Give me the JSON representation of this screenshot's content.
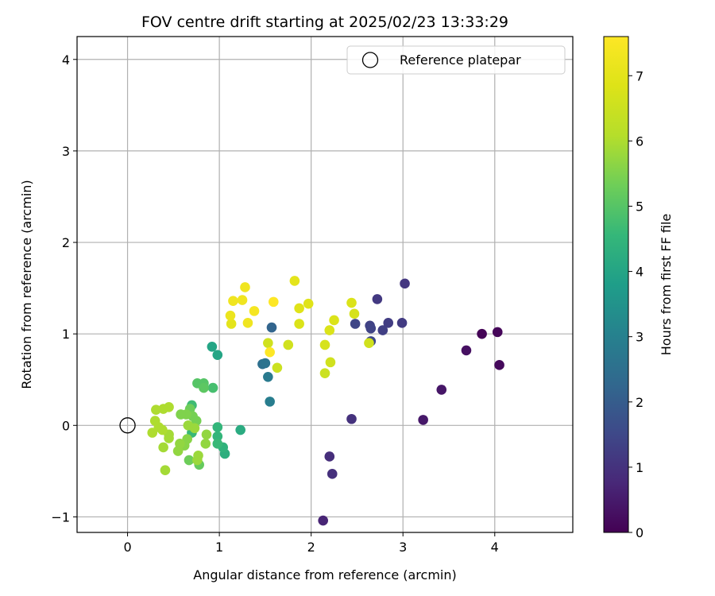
{
  "chart_data": {
    "type": "scatter",
    "title": "FOV centre drift starting at 2025/02/23 13:33:29",
    "xlabel": "Angular distance from reference (arcmin)",
    "ylabel": "Rotation from reference (arcmin)",
    "xlim": [
      -0.55,
      4.85
    ],
    "ylim": [
      -1.17,
      4.25
    ],
    "xticks": [
      0,
      1,
      2,
      3,
      4
    ],
    "yticks": [
      -1,
      0,
      1,
      2,
      3,
      4
    ],
    "grid": true,
    "legend": {
      "label": "Reference platepar",
      "position": "top-right"
    },
    "reference_point": {
      "x": 0,
      "y": 0
    },
    "colorbar": {
      "label": "Hours from first FF file",
      "min": 0,
      "max": 7.6,
      "ticks": [
        0,
        1,
        2,
        3,
        4,
        5,
        6,
        7
      ],
      "colormap": "viridis"
    },
    "points": [
      {
        "x": 3.86,
        "y": 1.0,
        "c": 0.05
      },
      {
        "x": 4.03,
        "y": 1.02,
        "c": 0.1
      },
      {
        "x": 4.05,
        "y": 0.66,
        "c": 0.15
      },
      {
        "x": 3.69,
        "y": 0.82,
        "c": 0.3
      },
      {
        "x": 3.42,
        "y": 0.39,
        "c": 0.4
      },
      {
        "x": 3.22,
        "y": 0.06,
        "c": 0.45
      },
      {
        "x": 2.13,
        "y": -1.04,
        "c": 0.7
      },
      {
        "x": 2.2,
        "y": -0.34,
        "c": 0.9
      },
      {
        "x": 2.23,
        "y": -0.53,
        "c": 0.95
      },
      {
        "x": 2.44,
        "y": 0.07,
        "c": 1.0
      },
      {
        "x": 3.02,
        "y": 1.55,
        "c": 1.1
      },
      {
        "x": 2.72,
        "y": 1.38,
        "c": 1.15
      },
      {
        "x": 2.99,
        "y": 1.12,
        "c": 1.2
      },
      {
        "x": 2.84,
        "y": 1.12,
        "c": 1.25
      },
      {
        "x": 2.78,
        "y": 1.04,
        "c": 1.3
      },
      {
        "x": 2.64,
        "y": 1.09,
        "c": 1.35
      },
      {
        "x": 2.65,
        "y": 1.06,
        "c": 1.4
      },
      {
        "x": 2.48,
        "y": 1.11,
        "c": 1.45
      },
      {
        "x": 2.65,
        "y": 0.92,
        "c": 1.5
      },
      {
        "x": 1.57,
        "y": 1.07,
        "c": 2.2
      },
      {
        "x": 1.47,
        "y": 0.67,
        "c": 2.5
      },
      {
        "x": 1.5,
        "y": 0.68,
        "c": 2.6
      },
      {
        "x": 1.53,
        "y": 0.53,
        "c": 2.8
      },
      {
        "x": 1.55,
        "y": 0.26,
        "c": 2.9
      },
      {
        "x": 0.92,
        "y": 0.86,
        "c": 4.0
      },
      {
        "x": 0.98,
        "y": 0.77,
        "c": 4.0
      },
      {
        "x": 1.23,
        "y": -0.05,
        "c": 4.2
      },
      {
        "x": 1.06,
        "y": -0.31,
        "c": 4.3
      },
      {
        "x": 1.04,
        "y": -0.24,
        "c": 4.4
      },
      {
        "x": 0.98,
        "y": -0.02,
        "c": 4.5
      },
      {
        "x": 0.98,
        "y": -0.12,
        "c": 4.5
      },
      {
        "x": 0.98,
        "y": -0.2,
        "c": 4.6
      },
      {
        "x": 0.7,
        "y": -0.08,
        "c": 4.6
      },
      {
        "x": 0.7,
        "y": 0.22,
        "c": 4.7
      },
      {
        "x": 0.93,
        "y": 0.41,
        "c": 4.8
      },
      {
        "x": 0.76,
        "y": 0.46,
        "c": 5.0
      },
      {
        "x": 0.83,
        "y": 0.46,
        "c": 5.0
      },
      {
        "x": 0.83,
        "y": 0.41,
        "c": 5.1
      },
      {
        "x": 0.78,
        "y": -0.43,
        "c": 5.2
      },
      {
        "x": 0.67,
        "y": -0.38,
        "c": 5.3
      },
      {
        "x": 0.68,
        "y": 0.18,
        "c": 5.3
      },
      {
        "x": 0.71,
        "y": 0.1,
        "c": 5.4
      },
      {
        "x": 0.75,
        "y": 0.05,
        "c": 5.4
      },
      {
        "x": 0.64,
        "y": 0.12,
        "c": 5.5
      },
      {
        "x": 0.58,
        "y": 0.12,
        "c": 5.5
      },
      {
        "x": 0.65,
        "y": -0.15,
        "c": 5.6
      },
      {
        "x": 0.62,
        "y": -0.22,
        "c": 5.6
      },
      {
        "x": 0.57,
        "y": -0.2,
        "c": 5.7
      },
      {
        "x": 0.55,
        "y": -0.28,
        "c": 5.7
      },
      {
        "x": 0.86,
        "y": -0.1,
        "c": 5.7
      },
      {
        "x": 0.85,
        "y": -0.2,
        "c": 5.7
      },
      {
        "x": 0.73,
        "y": -0.03,
        "c": 5.8
      },
      {
        "x": 0.66,
        "y": 0.0,
        "c": 5.8
      },
      {
        "x": 0.76,
        "y": -0.38,
        "c": 5.8
      },
      {
        "x": 0.77,
        "y": -0.33,
        "c": 5.8
      },
      {
        "x": 0.45,
        "y": -0.1,
        "c": 5.9
      },
      {
        "x": 0.45,
        "y": -0.14,
        "c": 5.9
      },
      {
        "x": 0.39,
        "y": -0.24,
        "c": 5.9
      },
      {
        "x": 0.41,
        "y": -0.49,
        "c": 5.9
      },
      {
        "x": 0.34,
        "y": -0.02,
        "c": 6.0
      },
      {
        "x": 0.38,
        "y": -0.05,
        "c": 6.0
      },
      {
        "x": 0.3,
        "y": 0.05,
        "c": 6.0
      },
      {
        "x": 0.27,
        "y": -0.08,
        "c": 6.0
      },
      {
        "x": 0.31,
        "y": 0.17,
        "c": 6.0
      },
      {
        "x": 0.39,
        "y": 0.18,
        "c": 6.0
      },
      {
        "x": 0.45,
        "y": 0.2,
        "c": 6.0
      },
      {
        "x": 1.63,
        "y": 0.63,
        "c": 6.5
      },
      {
        "x": 1.75,
        "y": 0.88,
        "c": 6.6
      },
      {
        "x": 1.53,
        "y": 0.9,
        "c": 6.6
      },
      {
        "x": 2.15,
        "y": 0.57,
        "c": 6.5
      },
      {
        "x": 2.21,
        "y": 0.69,
        "c": 6.6
      },
      {
        "x": 2.15,
        "y": 0.88,
        "c": 6.7
      },
      {
        "x": 2.2,
        "y": 1.04,
        "c": 6.8
      },
      {
        "x": 2.25,
        "y": 1.15,
        "c": 6.8
      },
      {
        "x": 2.44,
        "y": 1.34,
        "c": 6.8
      },
      {
        "x": 2.47,
        "y": 1.22,
        "c": 6.7
      },
      {
        "x": 2.63,
        "y": 0.9,
        "c": 6.6
      },
      {
        "x": 1.87,
        "y": 1.11,
        "c": 6.8
      },
      {
        "x": 1.87,
        "y": 1.28,
        "c": 6.9
      },
      {
        "x": 1.97,
        "y": 1.33,
        "c": 6.9
      },
      {
        "x": 1.82,
        "y": 1.58,
        "c": 7.0
      },
      {
        "x": 1.13,
        "y": 1.11,
        "c": 7.0
      },
      {
        "x": 1.12,
        "y": 1.2,
        "c": 7.2
      },
      {
        "x": 1.15,
        "y": 1.36,
        "c": 7.3
      },
      {
        "x": 1.25,
        "y": 1.37,
        "c": 7.3
      },
      {
        "x": 1.28,
        "y": 1.51,
        "c": 7.3
      },
      {
        "x": 1.31,
        "y": 1.12,
        "c": 7.3
      },
      {
        "x": 1.38,
        "y": 1.25,
        "c": 7.4
      },
      {
        "x": 1.55,
        "y": 0.8,
        "c": 7.6
      },
      {
        "x": 1.59,
        "y": 1.35,
        "c": 7.6
      }
    ]
  }
}
